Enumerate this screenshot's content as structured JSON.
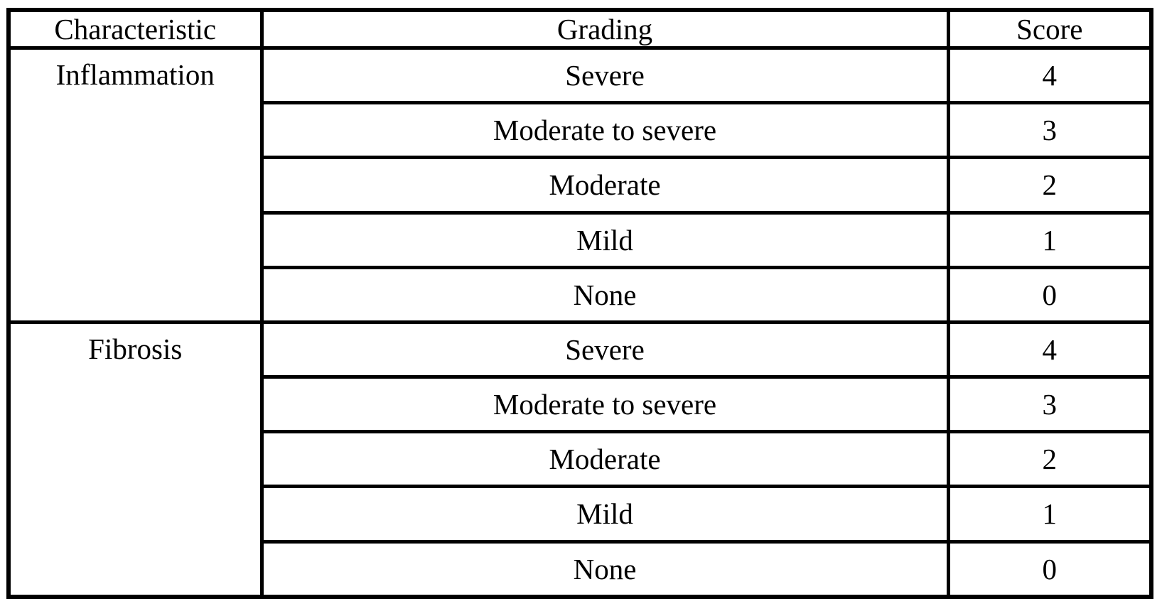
{
  "table": {
    "columns": [
      "Characteristic",
      "Grading",
      "Score"
    ],
    "sections": [
      {
        "characteristic": "Inflammation",
        "rows": [
          {
            "grading": "Severe",
            "score": "4"
          },
          {
            "grading": "Moderate to severe",
            "score": "3"
          },
          {
            "grading": "Moderate",
            "score": "2"
          },
          {
            "grading": "Mild",
            "score": "1"
          },
          {
            "grading": "None",
            "score": "0"
          }
        ]
      },
      {
        "characteristic": "Fibrosis",
        "rows": [
          {
            "grading": "Severe",
            "score": "4"
          },
          {
            "grading": "Moderate to severe",
            "score": "3"
          },
          {
            "grading": "Moderate",
            "score": "2"
          },
          {
            "grading": "Mild",
            "score": "1"
          },
          {
            "grading": "None",
            "score": "0"
          }
        ]
      }
    ]
  },
  "colors": {
    "border": "#000000",
    "background": "#ffffff",
    "text": "#000000"
  },
  "chart_data": {
    "type": "table",
    "columns": [
      "Characteristic",
      "Grading",
      "Score"
    ],
    "rows": [
      [
        "Inflammation",
        "Severe",
        4
      ],
      [
        "Inflammation",
        "Moderate to severe",
        3
      ],
      [
        "Inflammation",
        "Moderate",
        2
      ],
      [
        "Inflammation",
        "Mild",
        1
      ],
      [
        "Inflammation",
        "None",
        0
      ],
      [
        "Fibrosis",
        "Severe",
        4
      ],
      [
        "Fibrosis",
        "Moderate to severe",
        3
      ],
      [
        "Fibrosis",
        "Moderate",
        2
      ],
      [
        "Fibrosis",
        "Mild",
        1
      ],
      [
        "Fibrosis",
        "None",
        0
      ]
    ]
  }
}
